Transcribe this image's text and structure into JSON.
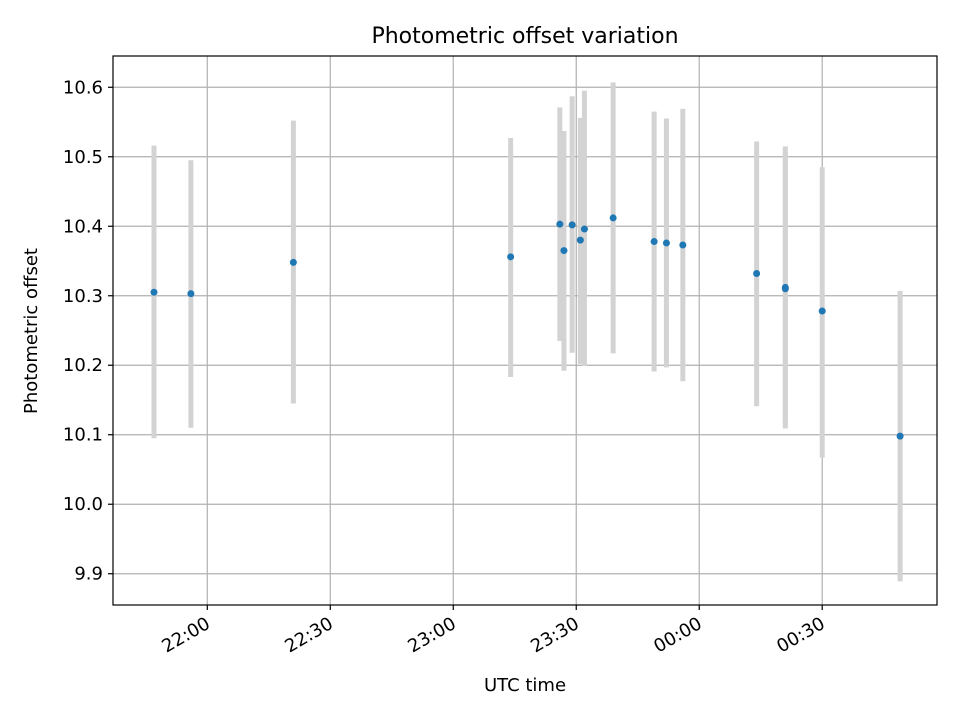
{
  "chart_data": {
    "type": "scatter",
    "title": "Photometric offset variation",
    "xlabel": "UTC time",
    "ylabel": "Photometric offset",
    "x_axis_kind": "time",
    "xlim": [
      "21:37",
      "00:58"
    ],
    "ylim": [
      9.855,
      10.645
    ],
    "x_ticks": [
      "22:00",
      "22:30",
      "23:00",
      "23:30",
      "00:00",
      "00:30"
    ],
    "y_ticks": [
      9.9,
      10.0,
      10.1,
      10.2,
      10.3,
      10.4,
      10.5,
      10.6
    ],
    "y_tick_labels": [
      "9.9",
      "10.0",
      "10.1",
      "10.2",
      "10.3",
      "10.4",
      "10.5",
      "10.6"
    ],
    "grid": true,
    "colors": {
      "point": "#1f77b4",
      "errorbar": "#d3d3d3",
      "grid": "#b0b0b0"
    },
    "points": [
      {
        "x": "21:47",
        "y": 10.305,
        "y_low": 10.095,
        "y_high": 10.516
      },
      {
        "x": "21:56",
        "y": 10.303,
        "y_low": 10.11,
        "y_high": 10.495
      },
      {
        "x": "22:21",
        "y": 10.348,
        "y_low": 10.145,
        "y_high": 10.552
      },
      {
        "x": "23:14",
        "y": 10.356,
        "y_low": 10.183,
        "y_high": 10.527
      },
      {
        "x": "23:26",
        "y": 10.403,
        "y_low": 10.235,
        "y_high": 10.571
      },
      {
        "x": "23:27",
        "y": 10.365,
        "y_low": 10.192,
        "y_high": 10.537
      },
      {
        "x": "23:29",
        "y": 10.402,
        "y_low": 10.218,
        "y_high": 10.587
      },
      {
        "x": "23:31",
        "y": 10.38,
        "y_low": 10.202,
        "y_high": 10.556
      },
      {
        "x": "23:32",
        "y": 10.396,
        "y_low": 10.199,
        "y_high": 10.595
      },
      {
        "x": "23:39",
        "y": 10.412,
        "y_low": 10.217,
        "y_high": 10.607
      },
      {
        "x": "23:49",
        "y": 10.378,
        "y_low": 10.191,
        "y_high": 10.565
      },
      {
        "x": "23:52",
        "y": 10.376,
        "y_low": 10.197,
        "y_high": 10.555
      },
      {
        "x": "23:56",
        "y": 10.373,
        "y_low": 10.177,
        "y_high": 10.569
      },
      {
        "x": "00:14",
        "y": 10.332,
        "y_low": 10.141,
        "y_high": 10.522
      },
      {
        "x": "00:21",
        "y": 10.312,
        "y_low": 10.109,
        "y_high": 10.515
      },
      {
        "x": "00:21",
        "y": 10.31,
        "y_low": 10.118,
        "y_high": 10.507
      },
      {
        "x": "00:30",
        "y": 10.278,
        "y_low": 10.067,
        "y_high": 10.485
      },
      {
        "x": "00:49",
        "y": 10.098,
        "y_low": 9.889,
        "y_high": 10.307
      }
    ]
  }
}
